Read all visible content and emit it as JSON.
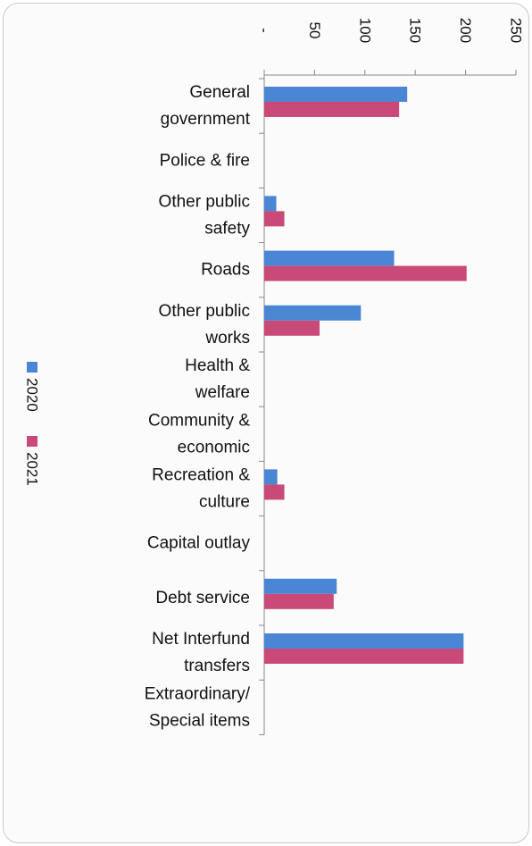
{
  "chart_data": {
    "type": "bar",
    "orientation": "horizontal",
    "categories": [
      [
        "General",
        "government"
      ],
      [
        "Police & fire"
      ],
      [
        "Other public",
        "safety"
      ],
      [
        "Roads"
      ],
      [
        "Other public",
        "works"
      ],
      [
        "Health &",
        "welfare"
      ],
      [
        "Community &",
        "economic"
      ],
      [
        "Recreation &",
        "culture"
      ],
      [
        "Capital outlay"
      ],
      [
        "Debt service"
      ],
      [
        "Net Interfund",
        "transfers"
      ],
      [
        "Extraordinary/",
        "Special items"
      ]
    ],
    "series": [
      {
        "name": "2020",
        "color": "#4a86d4",
        "values": [
          142,
          0,
          12,
          129,
          96,
          0,
          0,
          13,
          0,
          72,
          198,
          0
        ]
      },
      {
        "name": "2021",
        "color": "#c94a78",
        "values": [
          134,
          0,
          20,
          201,
          55,
          0,
          0,
          20,
          0,
          69,
          198,
          0
        ]
      }
    ],
    "ticks": [
      0,
      50,
      100,
      150,
      200,
      250
    ],
    "tick_labels": [
      "-",
      "50",
      "100",
      "150",
      "200",
      "250"
    ],
    "xlim": [
      0,
      250
    ],
    "grid": false,
    "legend_position": "left",
    "title": "",
    "xlabel": "",
    "ylabel": ""
  }
}
